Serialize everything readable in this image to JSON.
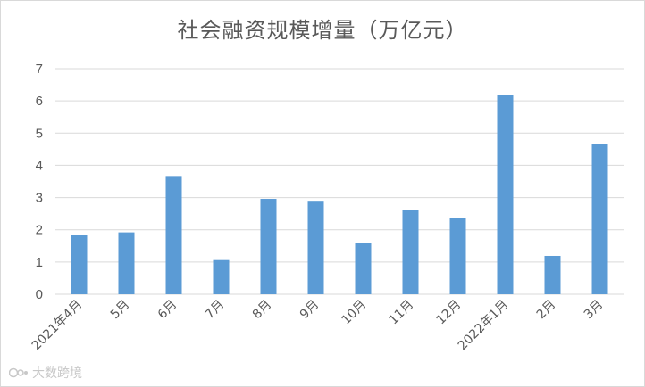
{
  "chart_data": {
    "type": "bar",
    "title": "社会融资规模增量（万亿元）",
    "categories": [
      "2021年4月",
      "5月",
      "6月",
      "7月",
      "8月",
      "9月",
      "10月",
      "11月",
      "12月",
      "2022年1月",
      "2月",
      "3月"
    ],
    "values": [
      1.85,
      1.92,
      3.67,
      1.06,
      2.96,
      2.9,
      1.59,
      2.61,
      2.37,
      6.17,
      1.19,
      4.65
    ],
    "ylim": [
      0,
      7
    ],
    "yticks": [
      "0",
      "1",
      "2",
      "3",
      "4",
      "5",
      "6",
      "7"
    ],
    "grid": true,
    "legend": "none",
    "bar_color": "#5b9bd5"
  },
  "watermark": {
    "text": "大数跨境",
    "icon": "watermark-logo-icon"
  }
}
